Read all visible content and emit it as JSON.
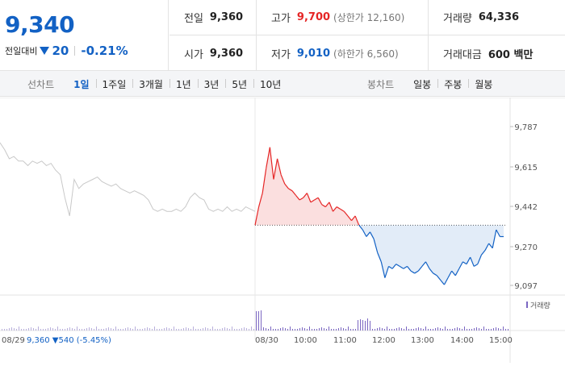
{
  "quote": {
    "price": "9,340",
    "change_label": "전일대비",
    "change_value": "20",
    "change_pct": "-0.21%",
    "direction_color": "#1261c4"
  },
  "stats": {
    "row1": [
      {
        "label": "전일",
        "value": "9,360",
        "kind": "plain",
        "limit": ""
      },
      {
        "label": "고가",
        "value": "9,700",
        "kind": "up",
        "limit": "(상한가 12,160)"
      },
      {
        "label": "거래량",
        "value": "64,336",
        "kind": "plain",
        "limit": ""
      }
    ],
    "row2": [
      {
        "label": "시가",
        "value": "9,360",
        "kind": "plain",
        "limit": ""
      },
      {
        "label": "저가",
        "value": "9,010",
        "kind": "down",
        "limit": "(하한가 6,560)"
      },
      {
        "label": "거래대금",
        "value": "600 백만",
        "kind": "plain",
        "limit": ""
      }
    ]
  },
  "line_tabs": {
    "title": "선차트",
    "items": [
      "1일",
      "1주일",
      "3개월",
      "1년",
      "3년",
      "5년",
      "10년"
    ],
    "active": "1일"
  },
  "candle_tabs": {
    "title": "봉차트",
    "items": [
      "일봉",
      "주봉",
      "월봉"
    ]
  },
  "chart_data": {
    "type": "line",
    "y_ticks": [
      "9,787",
      "9,615",
      "9,442",
      "9,270",
      "9,097"
    ],
    "x_ticks": [
      "08/30",
      "10:00",
      "11:00",
      "12:00",
      "13:00",
      "14:00",
      "15:00"
    ],
    "prev_day_label": "08/29",
    "prev_day_info": "9,360 ▼540 (-5.45%)",
    "volume_legend": "거래량",
    "reference_price": 9360,
    "colors": {
      "up": "#e52626",
      "down": "#1261c4",
      "prev": "#c8c8c8",
      "volume": "#7b67c2"
    },
    "prev_day_series": [
      9720,
      9690,
      9650,
      9660,
      9640,
      9640,
      9620,
      9640,
      9630,
      9640,
      9620,
      9630,
      9600,
      9580,
      9480,
      9400,
      9560,
      9520,
      9540,
      9550,
      9560,
      9570,
      9550,
      9540,
      9530,
      9540,
      9520,
      9510,
      9500,
      9510,
      9500,
      9490,
      9470,
      9430,
      9420,
      9430,
      9420,
      9420,
      9430,
      9420,
      9440,
      9480,
      9500,
      9480,
      9470,
      9430,
      9420,
      9430,
      9420,
      9440,
      9420,
      9430,
      9420,
      9440,
      9430,
      9420
    ],
    "today_series": [
      9360,
      9440,
      9500,
      9610,
      9700,
      9560,
      9650,
      9580,
      9540,
      9520,
      9510,
      9490,
      9470,
      9480,
      9500,
      9460,
      9470,
      9480,
      9450,
      9440,
      9460,
      9420,
      9440,
      9430,
      9420,
      9400,
      9380,
      9400,
      9360,
      9340,
      9310,
      9330,
      9300,
      9240,
      9200,
      9130,
      9180,
      9170,
      9190,
      9180,
      9170,
      9180,
      9160,
      9150,
      9160,
      9180,
      9200,
      9170,
      9150,
      9140,
      9120,
      9100,
      9130,
      9160,
      9140,
      9170,
      9200,
      9190,
      9220,
      9180,
      9190,
      9230,
      9250,
      9280,
      9260,
      9340,
      9310,
      9310
    ]
  }
}
